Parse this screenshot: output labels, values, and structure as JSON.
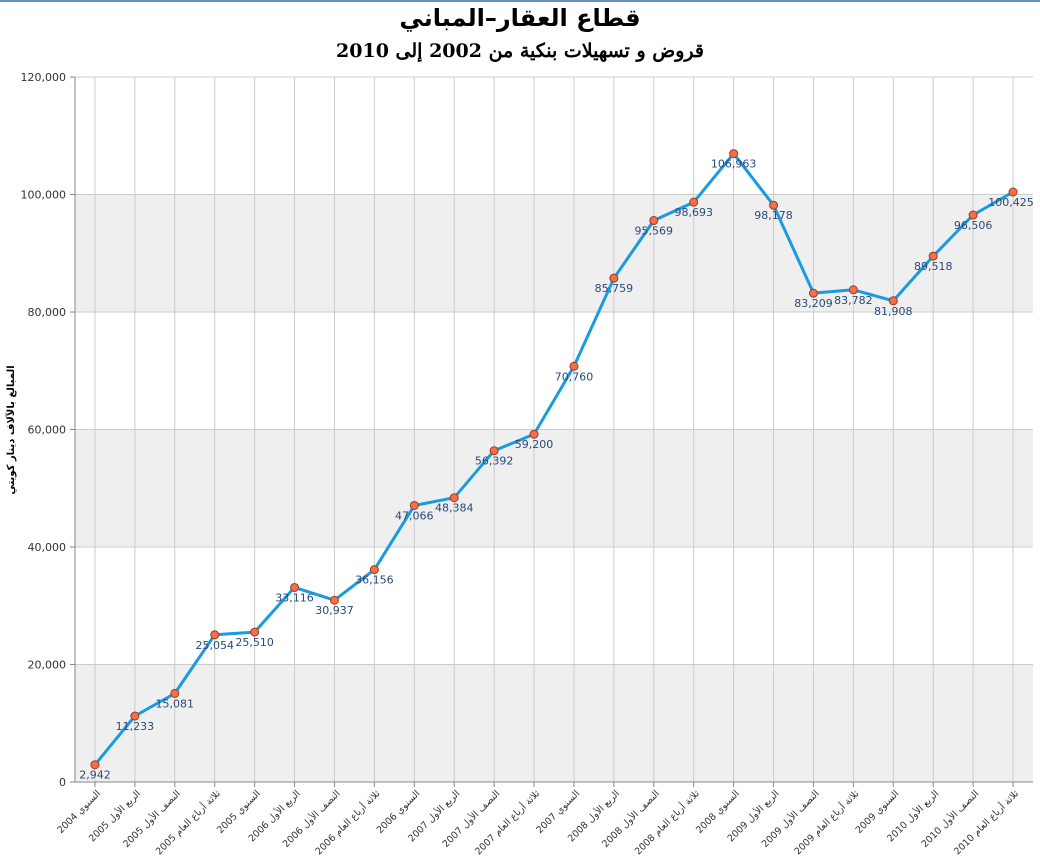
{
  "chart_data": {
    "type": "line",
    "title": "قطاع العقار–المباني",
    "subtitle": "قروض و تسهيلات بنكية من 2002 إلى 2010",
    "ylabel": "المبالغ بالآلاف دينار كويتي",
    "xlabel": "",
    "ylim": [
      0,
      120000
    ],
    "yticks": [
      "0",
      "20,000",
      "40,000",
      "60,000",
      "80,000",
      "100,000",
      "120,000"
    ],
    "grid": true,
    "legend": "none",
    "colors": {
      "line": "#1a9be0",
      "marker": "#f0704a",
      "marker_edge": "#a03a20",
      "band": "#efefef",
      "grid": "#cccccc",
      "label": "#2a4a7a"
    },
    "categories": [
      "السنوي 2004",
      "الربع الأول 2005",
      "النصف الأول 2005",
      "ثلاثة أرباع العام 2005",
      "السنوي 2005",
      "الربع الأول 2006",
      "النصف الأول 2006",
      "ثلاثة أرباع العام 2006",
      "السنوي 2006",
      "الربع الأول 2007",
      "النصف الأول 2007",
      "ثلاثة أرباع العام 2007",
      "السنوي 2007",
      "الربع الأول 2008",
      "النصف الأول 2008",
      "ثلاثة أرباع العام 2008",
      "السنوي 2008",
      "الربع الأول 2009",
      "النصف الأول 2009",
      "ثلاثة أرباع العام 2009",
      "السنوي 2009",
      "الربع الأول 2010",
      "النصف الأول 2010",
      "ثلاثة أرباع العام 2010"
    ],
    "values": [
      2942,
      11233,
      15081,
      25054,
      25510,
      33116,
      30937,
      36156,
      47066,
      48384,
      56392,
      59200,
      70760,
      85759,
      95569,
      98693,
      106963,
      98178,
      83209,
      83782,
      81908,
      89518,
      96506,
      100425
    ],
    "data_labels": [
      "2,942",
      "11,233",
      "15,081",
      "25,054",
      "25,510",
      "33,116",
      "30,937",
      "36,156",
      "47,066",
      "48,384",
      "56,392",
      "59,200",
      "70,760",
      "85,759",
      "95,569",
      "98,693",
      "106,963",
      "98,178",
      "83,209",
      "83,782",
      "81,908",
      "89,518",
      "96,506",
      "100,425"
    ]
  }
}
